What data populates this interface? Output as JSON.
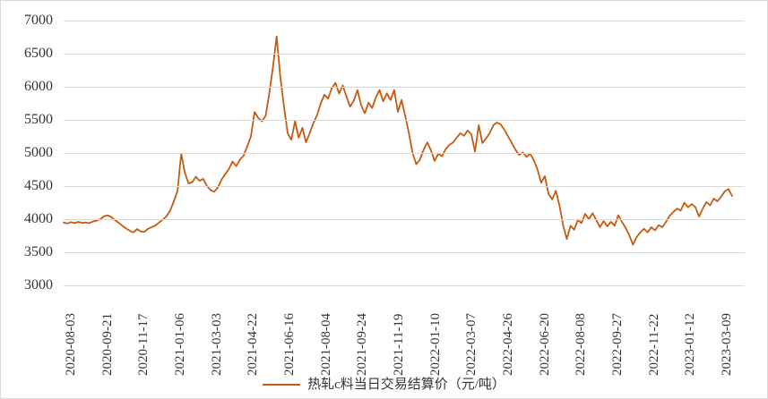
{
  "chart_data": {
    "type": "line",
    "title": "",
    "legend_position": "bottom",
    "grid": "horizontal-only",
    "line_color": "#C55A11",
    "gridline_color": "#D9D9D9",
    "text_color": "#333333",
    "ylim": [
      3000,
      7000
    ],
    "y_ticks": [
      7000,
      6500,
      6000,
      5500,
      5000,
      4500,
      4000,
      3500,
      3000
    ],
    "x_tick_labels": [
      "2020-08-03",
      "2020-09-21",
      "2020-11-17",
      "2021-01-06",
      "2021-03-03",
      "2021-04-22",
      "2021-06-16",
      "2021-08-04",
      "2021-09-24",
      "2021-11-19",
      "2022-01-10",
      "2022-03-07",
      "2022-04-26",
      "2022-06-20",
      "2022-08-08",
      "2022-09-27",
      "2022-11-22",
      "2023-01-12",
      "2023-03-09"
    ],
    "series": [
      {
        "name": "热轧c料当日交易结算价（元/吨）",
        "unit": "元/吨",
        "values": [
          3950,
          3935,
          3955,
          3940,
          3960,
          3945,
          3950,
          3940,
          3965,
          3980,
          4000,
          4045,
          4060,
          4030,
          3985,
          3945,
          3900,
          3860,
          3825,
          3800,
          3850,
          3815,
          3810,
          3855,
          3880,
          3905,
          3950,
          3995,
          4045,
          4130,
          4270,
          4430,
          4990,
          4700,
          4540,
          4560,
          4640,
          4580,
          4610,
          4500,
          4440,
          4415,
          4480,
          4600,
          4680,
          4760,
          4870,
          4800,
          4900,
          4960,
          5100,
          5250,
          5620,
          5530,
          5480,
          5560,
          5900,
          6300,
          6760,
          6150,
          5700,
          5300,
          5200,
          5480,
          5230,
          5380,
          5160,
          5300,
          5450,
          5570,
          5750,
          5880,
          5820,
          5980,
          6060,
          5900,
          6020,
          5850,
          5700,
          5790,
          5950,
          5720,
          5600,
          5760,
          5680,
          5840,
          5950,
          5780,
          5900,
          5800,
          5950,
          5620,
          5800,
          5560,
          5300,
          5000,
          4830,
          4900,
          5050,
          5160,
          5040,
          4880,
          4990,
          4950,
          5060,
          5120,
          5160,
          5230,
          5300,
          5260,
          5340,
          5280,
          5020,
          5420,
          5150,
          5220,
          5300,
          5420,
          5460,
          5430,
          5350,
          5250,
          5150,
          5050,
          4970,
          5010,
          4940,
          4990,
          4890,
          4750,
          4550,
          4650,
          4380,
          4300,
          4430,
          4200,
          3900,
          3700,
          3900,
          3840,
          3990,
          3940,
          4080,
          4000,
          4090,
          3990,
          3880,
          3970,
          3890,
          3960,
          3900,
          4060,
          3960,
          3870,
          3760,
          3615,
          3730,
          3800,
          3855,
          3800,
          3880,
          3830,
          3910,
          3880,
          3960,
          4050,
          4110,
          4160,
          4130,
          4250,
          4180,
          4230,
          4180,
          4040,
          4160,
          4260,
          4210,
          4310,
          4270,
          4340,
          4420,
          4455,
          4350
        ]
      }
    ]
  },
  "legend": {
    "label": "热轧c料当日交易结算价（元/吨）"
  }
}
